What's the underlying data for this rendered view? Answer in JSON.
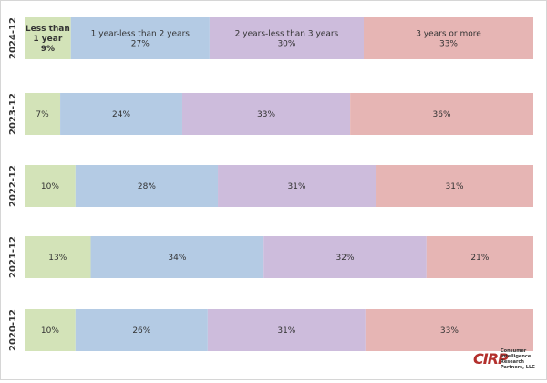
{
  "chart_data": {
    "type": "bar",
    "orientation": "horizontal-stacked-100",
    "categories": [
      "2024-12",
      "2023-12",
      "2022-12",
      "2021-12",
      "2020-12"
    ],
    "series": [
      {
        "name": "Less than 1 year",
        "values": [
          9,
          7,
          10,
          13,
          10
        ],
        "color": "#d3e3b8"
      },
      {
        "name": "1 year-less than 2 years",
        "values": [
          27,
          24,
          28,
          34,
          26
        ],
        "color": "#b4cbe4"
      },
      {
        "name": "2 years-less than 3 years",
        "values": [
          30,
          33,
          31,
          32,
          31
        ],
        "color": "#cdbcdc"
      },
      {
        "name": "3 years or more",
        "values": [
          33,
          36,
          31,
          21,
          33
        ],
        "color": "#e6b5b4"
      }
    ],
    "labels": [
      [
        "Less than\n1 year\n9%",
        "1 year-less than 2 years\n27%",
        "2 years-less than 3 years\n30%",
        "3 years or more\n33%"
      ],
      [
        "7%",
        "24%",
        "33%",
        "36%"
      ],
      [
        "10%",
        "28%",
        "31%",
        "31%"
      ],
      [
        "13%",
        "34%",
        "32%",
        "21%"
      ],
      [
        "10%",
        "26%",
        "31%",
        "33%"
      ]
    ],
    "xlim": [
      0,
      100
    ],
    "grid": false,
    "legend": "inline-in-first-bar"
  },
  "logo": {
    "mark": "CIRP",
    "text": "Consumer Intelligence Research Partners, LLC"
  }
}
